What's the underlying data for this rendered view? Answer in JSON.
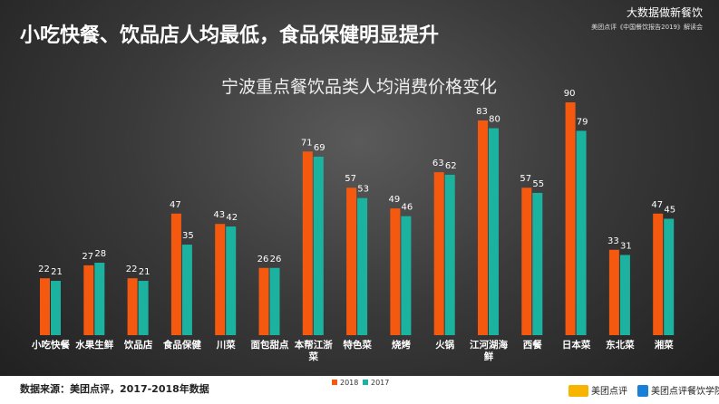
{
  "header": {
    "title": "小吃快餐、饮品店人均最低，食品保健明显提升",
    "brand": "大数据做新餐饮",
    "event": "美团点评《中国餐饮报告2019》解读会"
  },
  "chart_data": {
    "type": "bar",
    "title": "宁波重点餐饮品类人均消费价格变化",
    "categories": [
      "小吃快餐",
      "水果生鲜",
      "饮品店",
      "食品保健",
      "川菜",
      "面包甜点",
      "本帮江浙菜",
      "特色菜",
      "烧烤",
      "火锅",
      "江河湖海鲜",
      "西餐",
      "日本菜",
      "东北菜",
      "湘菜"
    ],
    "series": [
      {
        "name": "2018",
        "color": "#f4590f",
        "values": [
          22,
          27,
          22,
          47,
          43,
          26,
          71,
          57,
          49,
          63,
          83,
          57,
          90,
          33,
          47
        ]
      },
      {
        "name": "2017",
        "color": "#1bb3a0",
        "values": [
          21,
          28,
          21,
          35,
          42,
          26,
          69,
          53,
          46,
          62,
          80,
          55,
          79,
          31,
          45
        ]
      }
    ]
  },
  "footer": {
    "source": "数据来源：美团点评，2017-2018年数据",
    "logo": "美团点评",
    "school": "美团点评餐饮学院"
  }
}
